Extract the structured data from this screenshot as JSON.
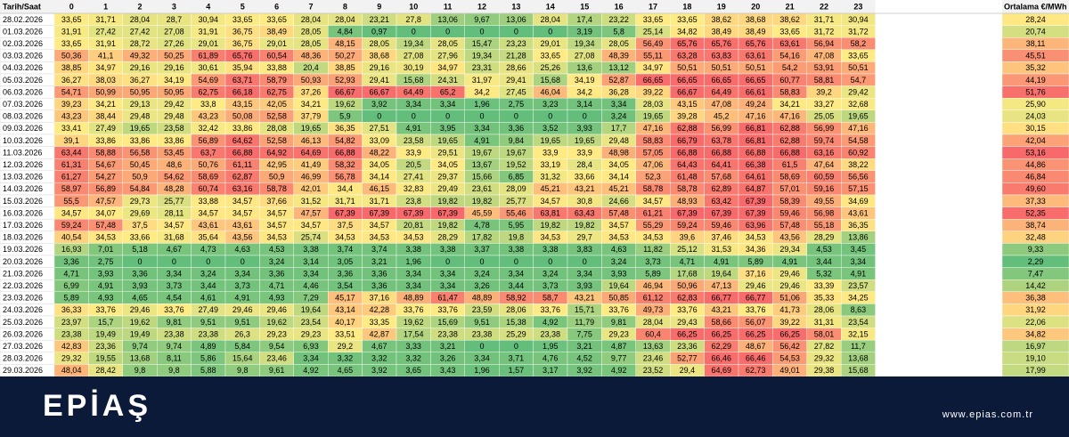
{
  "chart_data": {
    "type": "heatmap",
    "corner_label": "Tarih/Saat",
    "average_label": "Ortalama €/MWh",
    "hours": [
      "0",
      "1",
      "2",
      "3",
      "4",
      "5",
      "6",
      "7",
      "8",
      "9",
      "10",
      "11",
      "12",
      "13",
      "14",
      "15",
      "16",
      "17",
      "18",
      "19",
      "20",
      "21",
      "22",
      "23"
    ],
    "rows": [
      {
        "date": "28.02.2026",
        "values": [
          "33,65",
          "31,71",
          "28,04",
          "28,7",
          "30,94",
          "33,65",
          "33,65",
          "28,04",
          "28,04",
          "23,21",
          "27,8",
          "13,06",
          "9,67",
          "13,06",
          "28,04",
          "17,4",
          "23,22",
          "33,65",
          "33,65",
          "38,62",
          "38,68",
          "38,62",
          "31,71",
          "30,94"
        ],
        "average": "28,24"
      },
      {
        "date": "01.03.2026",
        "values": [
          "31,91",
          "27,42",
          "27,42",
          "27,08",
          "31,91",
          "36,75",
          "38,49",
          "28,05",
          "4,84",
          "0,97",
          "0",
          "0",
          "0",
          "0",
          "0",
          "3,19",
          "5,8",
          "25,14",
          "34,82",
          "38,49",
          "38,49",
          "33,65",
          "31,72",
          "31,72"
        ],
        "average": "20,74"
      },
      {
        "date": "02.03.2026",
        "values": [
          "33,65",
          "31,91",
          "28,72",
          "27,26",
          "29,01",
          "36,75",
          "29,01",
          "28,05",
          "48,15",
          "28,05",
          "19,34",
          "28,05",
          "15,47",
          "23,23",
          "29,01",
          "19,34",
          "28,05",
          "56,49",
          "65,76",
          "65,76",
          "65,76",
          "63,61",
          "56,94",
          "58,2"
        ],
        "average": "38,11"
      },
      {
        "date": "03.03.2026",
        "values": [
          "50,36",
          "41,1",
          "49,32",
          "50,25",
          "61,89",
          "65,76",
          "60,54",
          "48,36",
          "50,27",
          "38,68",
          "27,08",
          "27,96",
          "19,34",
          "21,28",
          "33,65",
          "27,08",
          "48,39",
          "55,11",
          "63,28",
          "63,83",
          "63,61",
          "54,16",
          "47,08",
          "33,65"
        ],
        "average": "45,51"
      },
      {
        "date": "04.03.2026",
        "values": [
          "38,85",
          "34,97",
          "29,16",
          "29,16",
          "30,61",
          "35,94",
          "33,88",
          "20,4",
          "38,85",
          "29,16",
          "30,19",
          "34,97",
          "23,31",
          "28,66",
          "25,26",
          "13,6",
          "13,12",
          "34,97",
          "50,51",
          "50,51",
          "50,51",
          "54,2",
          "53,91",
          "50,51"
        ],
        "average": "35,32"
      },
      {
        "date": "05.03.2026",
        "values": [
          "36,27",
          "38,03",
          "36,27",
          "34,19",
          "54,69",
          "63,71",
          "58,79",
          "50,93",
          "52,93",
          "29,41",
          "15,68",
          "24,31",
          "31,97",
          "29,41",
          "15,68",
          "34,19",
          "52,87",
          "66,65",
          "66,65",
          "66,65",
          "66,65",
          "60,77",
          "58,81",
          "54,7"
        ],
        "average": "44,19"
      },
      {
        "date": "06.03.2026",
        "values": [
          "54,71",
          "50,99",
          "50,95",
          "50,95",
          "62,75",
          "66,18",
          "62,75",
          "37,26",
          "66,67",
          "66,67",
          "64,49",
          "65,2",
          "34,2",
          "27,45",
          "46,04",
          "34,2",
          "36,28",
          "39,22",
          "66,67",
          "64,49",
          "66,61",
          "58,83",
          "39,2",
          "29,42"
        ],
        "average": "51,76"
      },
      {
        "date": "07.03.2026",
        "values": [
          "39,23",
          "34,21",
          "29,13",
          "29,42",
          "33,8",
          "43,15",
          "42,05",
          "34,21",
          "19,62",
          "3,92",
          "3,34",
          "3,34",
          "1,96",
          "2,75",
          "3,23",
          "3,14",
          "3,34",
          "28,03",
          "43,15",
          "47,08",
          "49,24",
          "34,21",
          "33,27",
          "32,68"
        ],
        "average": "25,90"
      },
      {
        "date": "08.03.2026",
        "values": [
          "43,23",
          "38,44",
          "29,48",
          "29,48",
          "43,23",
          "50,08",
          "52,58",
          "37,79",
          "5,9",
          "0",
          "0",
          "0",
          "0",
          "0",
          "0",
          "0",
          "3,24",
          "19,65",
          "39,28",
          "45,2",
          "47,16",
          "47,16",
          "25,05",
          "19,65"
        ],
        "average": "24,03"
      },
      {
        "date": "09.03.2026",
        "values": [
          "33,41",
          "27,49",
          "19,65",
          "23,58",
          "32,42",
          "33,86",
          "28,08",
          "19,65",
          "36,35",
          "27,51",
          "4,91",
          "3,95",
          "3,34",
          "3,36",
          "3,52",
          "3,93",
          "17,7",
          "47,16",
          "62,88",
          "56,99",
          "66,81",
          "62,88",
          "56,99",
          "47,16"
        ],
        "average": "30,15"
      },
      {
        "date": "10.03.2026",
        "values": [
          "39,1",
          "33,86",
          "33,86",
          "33,86",
          "56,89",
          "64,62",
          "52,58",
          "46,13",
          "54,82",
          "33,09",
          "23,58",
          "19,65",
          "4,91",
          "9,84",
          "19,65",
          "19,65",
          "29,48",
          "58,83",
          "66,79",
          "63,78",
          "66,81",
          "62,88",
          "59,74",
          "54,58"
        ],
        "average": "42,04"
      },
      {
        "date": "11.03.2026",
        "values": [
          "63,44",
          "58,88",
          "56,58",
          "53,45",
          "63,7",
          "66,88",
          "64,92",
          "64,69",
          "66,88",
          "48,22",
          "33,9",
          "29,51",
          "19,67",
          "19,67",
          "33,9",
          "33,9",
          "48,98",
          "57,05",
          "66,88",
          "66,88",
          "66,88",
          "66,88",
          "63,16",
          "60,92"
        ],
        "average": "53,16"
      },
      {
        "date": "12.03.2026",
        "values": [
          "61,31",
          "54,67",
          "50,45",
          "48,6",
          "50,76",
          "61,11",
          "42,95",
          "41,49",
          "58,32",
          "34,05",
          "20,5",
          "34,05",
          "13,67",
          "19,52",
          "33,19",
          "28,4",
          "34,05",
          "47,06",
          "64,43",
          "64,41",
          "66,38",
          "61,5",
          "47,64",
          "38,22"
        ],
        "average": "44,86"
      },
      {
        "date": "13.03.2026",
        "values": [
          "61,27",
          "54,27",
          "50,9",
          "54,62",
          "58,69",
          "62,87",
          "50,9",
          "46,99",
          "56,78",
          "34,14",
          "27,41",
          "29,37",
          "15,66",
          "6,85",
          "31,32",
          "33,66",
          "34,14",
          "52,3",
          "61,48",
          "57,68",
          "64,61",
          "58,69",
          "60,59",
          "56,56"
        ],
        "average": "46,84"
      },
      {
        "date": "14.03.2026",
        "values": [
          "58,97",
          "56,89",
          "54,84",
          "48,28",
          "60,74",
          "63,16",
          "58,78",
          "42,01",
          "34,4",
          "46,15",
          "32,83",
          "29,49",
          "23,61",
          "28,09",
          "45,21",
          "43,21",
          "45,21",
          "58,78",
          "58,78",
          "62,89",
          "64,87",
          "57,01",
          "59,16",
          "57,15"
        ],
        "average": "49,60"
      },
      {
        "date": "15.03.2026",
        "values": [
          "55,5",
          "47,57",
          "29,73",
          "25,77",
          "33,88",
          "34,57",
          "37,66",
          "31,52",
          "31,71",
          "31,71",
          "23,8",
          "19,82",
          "19,82",
          "25,77",
          "34,57",
          "30,8",
          "24,66",
          "34,57",
          "48,93",
          "63,42",
          "67,39",
          "58,39",
          "49,55",
          "34,69"
        ],
        "average": "37,33"
      },
      {
        "date": "16.03.2026",
        "values": [
          "34,57",
          "34,07",
          "29,69",
          "28,11",
          "34,57",
          "34,57",
          "34,57",
          "47,57",
          "67,39",
          "67,39",
          "67,39",
          "67,39",
          "45,59",
          "55,46",
          "63,81",
          "63,43",
          "57,48",
          "61,21",
          "67,39",
          "67,39",
          "67,39",
          "59,46",
          "56,98",
          "43,61"
        ],
        "average": "52,35"
      },
      {
        "date": "17.03.2026",
        "values": [
          "59,24",
          "57,48",
          "37,5",
          "34,57",
          "43,61",
          "43,61",
          "34,57",
          "34,57",
          "37,5",
          "34,57",
          "20,81",
          "19,82",
          "4,78",
          "5,95",
          "19,82",
          "19,82",
          "34,57",
          "55,29",
          "59,24",
          "59,46",
          "63,96",
          "57,48",
          "55,18",
          "36,35"
        ],
        "average": "38,74"
      },
      {
        "date": "18.03.2026",
        "values": [
          "40,54",
          "34,53",
          "33,66",
          "31,68",
          "35,64",
          "43,56",
          "34,53",
          "25,74",
          "34,53",
          "34,53",
          "34,53",
          "28,29",
          "17,82",
          "19,8",
          "34,53",
          "29,7",
          "34,53",
          "34,53",
          "39,6",
          "37,46",
          "34,53",
          "43,56",
          "28,29",
          "13,86"
        ],
        "average": "32,48"
      },
      {
        "date": "19.03.2026",
        "values": [
          "16,93",
          "7,01",
          "5,18",
          "4,67",
          "4,73",
          "4,63",
          "4,53",
          "3,38",
          "3,74",
          "3,74",
          "3,38",
          "3,38",
          "3,37",
          "3,38",
          "3,38",
          "3,83",
          "4,63",
          "11,82",
          "25,12",
          "31,53",
          "34,36",
          "29,34",
          "4,53",
          "3,45"
        ],
        "average": "9,33"
      },
      {
        "date": "20.03.2026",
        "values": [
          "3,36",
          "2,75",
          "0",
          "0",
          "0",
          "0",
          "3,24",
          "3,14",
          "3,05",
          "3,21",
          "1,96",
          "0",
          "0",
          "0",
          "0",
          "0",
          "3,24",
          "3,73",
          "4,71",
          "4,91",
          "5,89",
          "4,91",
          "3,44",
          "3,34"
        ],
        "average": "2,29"
      },
      {
        "date": "21.03.2026",
        "values": [
          "4,71",
          "3,93",
          "3,36",
          "3,34",
          "3,24",
          "3,34",
          "3,36",
          "3,34",
          "3,36",
          "3,36",
          "3,34",
          "3,34",
          "3,24",
          "3,34",
          "3,24",
          "3,34",
          "3,93",
          "5,89",
          "17,68",
          "19,64",
          "37,16",
          "29,46",
          "5,32",
          "4,91"
        ],
        "average": "7,47"
      },
      {
        "date": "22.03.2026",
        "values": [
          "6,99",
          "4,91",
          "3,93",
          "3,73",
          "3,44",
          "3,73",
          "4,71",
          "4,46",
          "3,54",
          "3,36",
          "3,34",
          "3,34",
          "3,26",
          "3,44",
          "3,73",
          "3,93",
          "19,64",
          "46,94",
          "50,96",
          "47,13",
          "29,46",
          "29,46",
          "33,39",
          "23,57"
        ],
        "average": "14,42"
      },
      {
        "date": "23.03.2026",
        "values": [
          "5,89",
          "4,93",
          "4,65",
          "4,54",
          "4,61",
          "4,91",
          "4,93",
          "7,29",
          "45,17",
          "37,16",
          "48,89",
          "61,47",
          "48,89",
          "58,92",
          "58,7",
          "43,21",
          "50,85",
          "61,12",
          "62,83",
          "66,77",
          "66,77",
          "51,06",
          "35,33",
          "34,25"
        ],
        "average": "36,38"
      },
      {
        "date": "24.03.2026",
        "values": [
          "36,33",
          "33,76",
          "29,46",
          "33,76",
          "27,49",
          "29,46",
          "29,46",
          "19,64",
          "43,14",
          "42,28",
          "33,76",
          "33,76",
          "23,59",
          "28,06",
          "33,76",
          "15,71",
          "33,76",
          "49,73",
          "33,76",
          "43,21",
          "33,76",
          "41,73",
          "28,06",
          "8,63"
        ],
        "average": "31,92"
      },
      {
        "date": "25.03.2026",
        "values": [
          "23,97",
          "15,7",
          "19,62",
          "9,81",
          "9,51",
          "9,51",
          "19,62",
          "23,54",
          "40,17",
          "33,35",
          "19,62",
          "15,69",
          "9,51",
          "15,38",
          "4,92",
          "11,79",
          "9,81",
          "28,04",
          "29,43",
          "58,66",
          "56,07",
          "39,22",
          "31,31",
          "23,54"
        ],
        "average": "22,06"
      },
      {
        "date": "26.03.2026",
        "values": [
          "23,38",
          "19,49",
          "19,49",
          "23,38",
          "23,38",
          "26,3",
          "29,23",
          "29,23",
          "33,51",
          "42,87",
          "17,54",
          "23,38",
          "23,38",
          "25,29",
          "23,38",
          "7,75",
          "29,23",
          "60,4",
          "66,25",
          "66,25",
          "66,25",
          "66,25",
          "58,01",
          "32,15"
        ],
        "average": "34,82"
      },
      {
        "date": "27.03.2026",
        "values": [
          "42,83",
          "23,36",
          "9,74",
          "9,74",
          "4,89",
          "5,84",
          "9,54",
          "6,93",
          "29,2",
          "4,67",
          "3,33",
          "3,21",
          "0",
          "0",
          "1,95",
          "3,21",
          "4,87",
          "13,63",
          "23,36",
          "62,29",
          "48,67",
          "56,42",
          "27,82",
          "11,7"
        ],
        "average": "16,97"
      },
      {
        "date": "28.03.2026",
        "values": [
          "29,32",
          "19,55",
          "13,68",
          "8,11",
          "5,86",
          "15,64",
          "23,46",
          "3,34",
          "3,32",
          "3,32",
          "3,32",
          "3,26",
          "3,34",
          "3,71",
          "4,76",
          "4,52",
          "9,77",
          "23,46",
          "52,77",
          "66,46",
          "66,46",
          "54,53",
          "29,32",
          "13,68"
        ],
        "average": "19,10"
      },
      {
        "date": "29.03.2026",
        "values": [
          "48,04",
          "28,42",
          "9,8",
          "9,8",
          "5,88",
          "9,8",
          "9,61",
          "4,92",
          "4,65",
          "3,92",
          "3,65",
          "3,43",
          "1,96",
          "1,57",
          "3,17",
          "3,92",
          "4,92",
          "23,52",
          "29,4",
          "64,69",
          "62,73",
          "49,01",
          "29,38",
          "15,68"
        ],
        "average": "17,99"
      }
    ]
  },
  "brand": {
    "logo_text": "EPİAŞ",
    "website": "www.epias.com.tr"
  },
  "colors": {
    "low": "#63be7b",
    "mid": "#ffeb84",
    "high": "#f8696b",
    "footer_bg": "#0c1a3a",
    "header_bg": "#f2f2f2",
    "grid": "#d9d9d9"
  }
}
